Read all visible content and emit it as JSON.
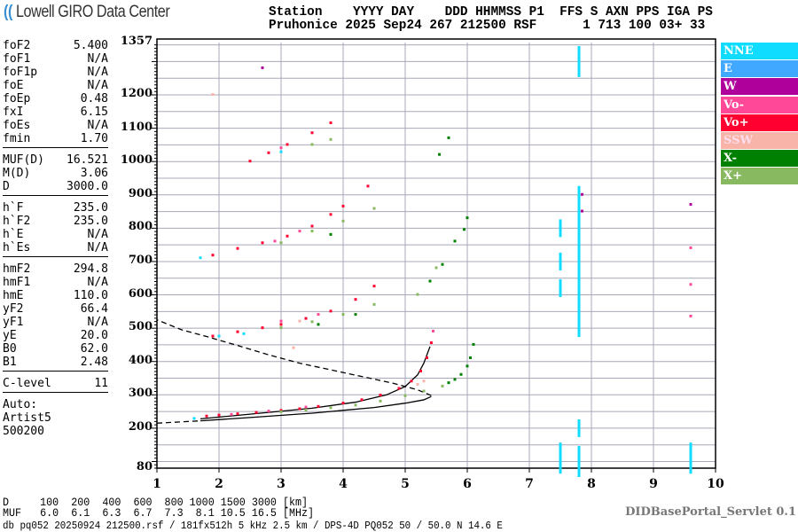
{
  "header": {
    "logo": "Lowell GIRO Data Center",
    "line1": "Station    YYYY DAY    DDD HHMMSS P1  FFS S AXN PPS IGA PS",
    "line2": "Pruhonice 2025 Sep24 267 212500 RSF      1 713 100 03+ 33"
  },
  "params": [
    {
      "group": [
        [
          "foF2",
          "5.400"
        ],
        [
          "foF1",
          "N/A"
        ],
        [
          "foF1p",
          "N/A"
        ],
        [
          "foE",
          "N/A"
        ],
        [
          "foEp",
          "0.48"
        ],
        [
          "fxI",
          "6.15"
        ],
        [
          "foEs",
          "N/A"
        ],
        [
          "fmin",
          "1.70"
        ]
      ]
    },
    {
      "group": [
        [
          "MUF(D)",
          "16.521"
        ],
        [
          "M(D)",
          "3.06"
        ],
        [
          "D",
          "3000.0"
        ]
      ]
    },
    {
      "group": [
        [
          "h`F",
          "235.0"
        ],
        [
          "h`F2",
          "235.0"
        ],
        [
          "h`E",
          "N/A"
        ],
        [
          "h`Es",
          "N/A"
        ]
      ]
    },
    {
      "group": [
        [
          "hmF2",
          "294.8"
        ],
        [
          "hmF1",
          "N/A"
        ],
        [
          "hmE",
          "110.0"
        ],
        [
          "yF2",
          "66.4"
        ],
        [
          "yF1",
          "N/A"
        ],
        [
          "yE",
          "20.0"
        ],
        [
          "B0",
          "62.0"
        ],
        [
          "B1",
          "2.48"
        ]
      ]
    },
    {
      "group": [
        [
          "C-level",
          "11"
        ]
      ]
    }
  ],
  "auto": [
    "Auto:",
    "Artist5",
    "500200"
  ],
  "legend": [
    {
      "label": "NNE",
      "color": "#10dcff"
    },
    {
      "label": "E",
      "color": "#40a8ff"
    },
    {
      "label": "W",
      "color": "#b0009c"
    },
    {
      "label": "Vo-",
      "color": "#ff4898"
    },
    {
      "label": "Vo+",
      "color": "#ff0030"
    },
    {
      "label": "SSW",
      "color": "#f8b4a8"
    },
    {
      "label": "X-",
      "color": "#008000"
    },
    {
      "label": "X+",
      "color": "#88b860"
    }
  ],
  "chart_data": {
    "type": "scatter",
    "xlim": [
      1,
      10
    ],
    "ylim": [
      80,
      1357
    ],
    "x_ticks": [
      "1",
      "2",
      "3",
      "4",
      "5",
      "6",
      "7",
      "8",
      "9",
      "10"
    ],
    "y_ticks": [
      "1357",
      "1200",
      "1100",
      "1000",
      "900",
      "800",
      "700",
      "600",
      "500",
      "400",
      "300",
      "200",
      "80"
    ],
    "grid": true,
    "series": [
      {
        "name": "Vo+",
        "points": [
          [
            1.8,
            235
          ],
          [
            2.0,
            238
          ],
          [
            2.3,
            242
          ],
          [
            2.6,
            246
          ],
          [
            3.0,
            252
          ],
          [
            3.3,
            257
          ],
          [
            3.6,
            264
          ],
          [
            4.0,
            274
          ],
          [
            4.3,
            284
          ],
          [
            4.6,
            298
          ],
          [
            4.9,
            318
          ],
          [
            5.1,
            340
          ],
          [
            5.25,
            370
          ],
          [
            5.35,
            410
          ],
          [
            5.42,
            455
          ],
          [
            1.9,
            475
          ],
          [
            2.3,
            488
          ],
          [
            2.7,
            500
          ],
          [
            3.0,
            510
          ],
          [
            3.4,
            528
          ],
          [
            3.8,
            550
          ],
          [
            4.2,
            585
          ],
          [
            4.5,
            625
          ],
          [
            1.9,
            718
          ],
          [
            2.3,
            738
          ],
          [
            2.7,
            755
          ],
          [
            3.1,
            775
          ],
          [
            3.5,
            805
          ],
          [
            3.8,
            840
          ],
          [
            4.0,
            865
          ],
          [
            4.4,
            925
          ],
          [
            2.5,
            1000
          ],
          [
            2.8,
            1025
          ],
          [
            3.1,
            1050
          ],
          [
            3.5,
            1085
          ],
          [
            3.8,
            1115
          ]
        ]
      },
      {
        "name": "Vo-",
        "points": [
          [
            2.2,
            240
          ],
          [
            2.8,
            250
          ],
          [
            3.4,
            262
          ],
          [
            3.0,
            520
          ],
          [
            3.6,
            540
          ],
          [
            2.9,
            760
          ],
          [
            3.3,
            790
          ],
          [
            3.0,
            1040
          ],
          [
            5.45,
            490
          ],
          [
            9.6,
            740
          ],
          [
            9.6,
            630
          ],
          [
            9.6,
            535
          ]
        ]
      },
      {
        "name": "X+",
        "points": [
          [
            3.0,
            248
          ],
          [
            3.4,
            253
          ],
          [
            3.8,
            260
          ],
          [
            4.2,
            268
          ],
          [
            4.6,
            280
          ],
          [
            5.0,
            296
          ],
          [
            5.3,
            310
          ],
          [
            5.6,
            325
          ],
          [
            3.0,
            500
          ],
          [
            3.5,
            518
          ],
          [
            4.0,
            540
          ],
          [
            4.5,
            570
          ],
          [
            3.0,
            755
          ],
          [
            3.5,
            790
          ],
          [
            4.0,
            820
          ],
          [
            4.5,
            858
          ],
          [
            3.5,
            1050
          ],
          [
            3.8,
            1065
          ],
          [
            5.2,
            600
          ],
          [
            5.5,
            680
          ]
        ]
      },
      {
        "name": "X-",
        "points": [
          [
            5.7,
            335
          ],
          [
            5.8,
            345
          ],
          [
            5.9,
            360
          ],
          [
            6.0,
            385
          ],
          [
            6.05,
            410
          ],
          [
            6.1,
            450
          ],
          [
            5.4,
            640
          ],
          [
            5.6,
            690
          ],
          [
            5.8,
            760
          ],
          [
            5.95,
            795
          ],
          [
            6.0,
            830
          ],
          [
            5.55,
            1020
          ],
          [
            5.7,
            1070
          ],
          [
            3.6,
            510
          ],
          [
            4.2,
            540
          ],
          [
            3.8,
            780
          ]
        ]
      },
      {
        "name": "NNE",
        "points": [
          [
            1.6,
            228
          ],
          [
            2.0,
            475
          ],
          [
            2.4,
            482
          ],
          [
            1.7,
            710
          ],
          [
            3.0,
            1028
          ],
          [
            7.5,
            90
          ],
          [
            7.5,
            130
          ],
          [
            7.5,
            620
          ],
          [
            7.5,
            700
          ],
          [
            7.5,
            800
          ],
          [
            7.8,
            80
          ],
          [
            7.8,
            120
          ],
          [
            7.8,
            200
          ],
          [
            7.8,
            500
          ],
          [
            7.8,
            550
          ],
          [
            7.8,
            600
          ],
          [
            7.8,
            650
          ],
          [
            7.8,
            700
          ],
          [
            7.8,
            750
          ],
          [
            7.8,
            800
          ],
          [
            7.8,
            850
          ],
          [
            7.8,
            900
          ],
          [
            7.8,
            1280
          ],
          [
            7.8,
            1320
          ],
          [
            9.6,
            90
          ],
          [
            9.6,
            130
          ]
        ]
      },
      {
        "name": "W",
        "points": [
          [
            7.85,
            850
          ],
          [
            7.85,
            900
          ],
          [
            2.7,
            1280
          ],
          [
            9.6,
            870
          ]
        ]
      },
      {
        "name": "SSW",
        "points": [
          [
            5.3,
            340
          ],
          [
            5.2,
            330
          ],
          [
            3.2,
            440
          ],
          [
            3.3,
            520
          ],
          [
            1.9,
            1200
          ]
        ]
      }
    ],
    "profile": {
      "solid_upper": [
        [
          1.7,
          228
        ],
        [
          2.5,
          242
        ],
        [
          3.5,
          260
        ],
        [
          4.2,
          278
        ],
        [
          4.7,
          300
        ],
        [
          5.0,
          325
        ],
        [
          5.2,
          360
        ],
        [
          5.3,
          395
        ],
        [
          5.4,
          445
        ]
      ],
      "solid_lower": [
        [
          1.7,
          222
        ],
        [
          2.5,
          232
        ],
        [
          3.5,
          245
        ],
        [
          4.5,
          262
        ],
        [
          5.0,
          275
        ],
        [
          5.3,
          285
        ],
        [
          5.42,
          295
        ]
      ],
      "dashed_low": [
        [
          1.0,
          215
        ],
        [
          1.7,
          222
        ]
      ],
      "dashed_back": [
        [
          5.42,
          298
        ],
        [
          5.2,
          315
        ],
        [
          4.8,
          335
        ],
        [
          4.3,
          355
        ],
        [
          3.8,
          375
        ],
        [
          3.3,
          395
        ],
        [
          2.8,
          420
        ],
        [
          2.3,
          448
        ],
        [
          1.8,
          475
        ],
        [
          1.4,
          495
        ],
        [
          1.0,
          525
        ]
      ]
    }
  },
  "footer": {
    "d_row": "D     100  200  400  600  800 1000 1500 3000 [km]",
    "muf_row": "MUF   6.0  6.1  6.3  6.7  7.3  8.1 10.5 16.5 [MHz]",
    "db_line": "db pq052 20250924 212500.rsf / 181fx512h 5 kHz 2.5 km / DPS-4D PQ052 50 / 50.0 N 14.6 E",
    "servlet": "DIDBasePortal_Servlet 0.1"
  }
}
